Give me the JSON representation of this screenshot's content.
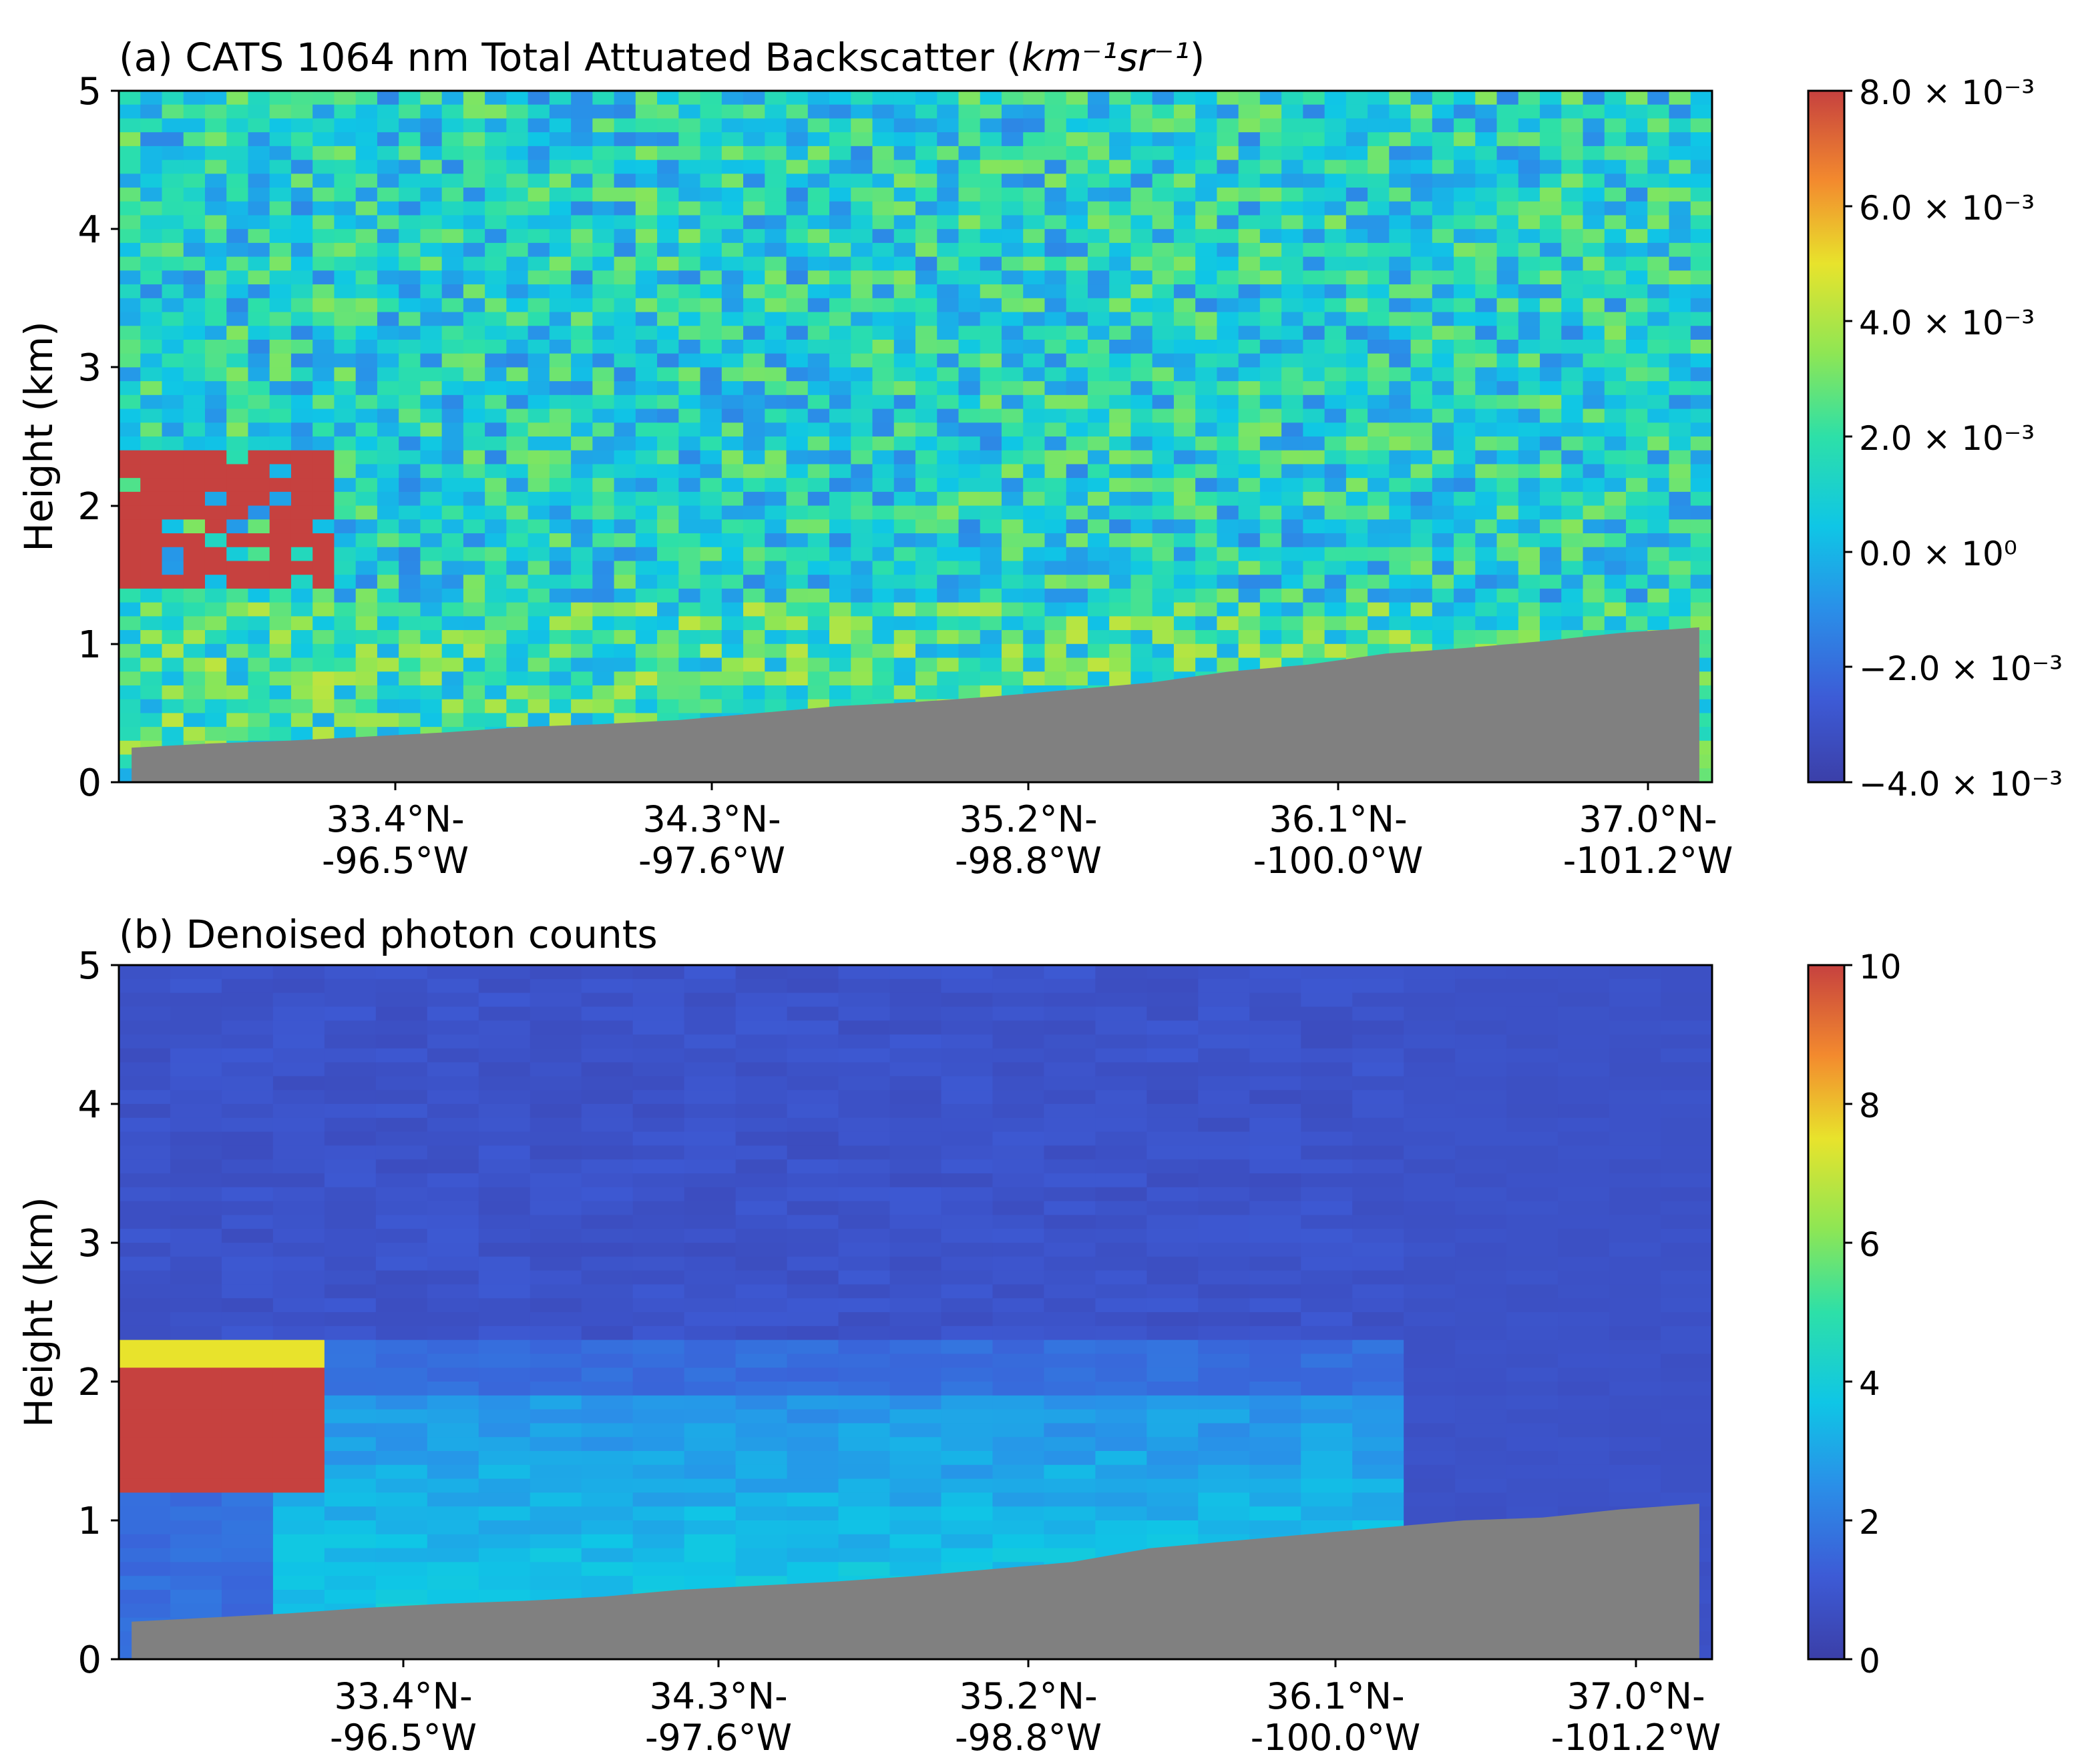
{
  "chart_data": [
    {
      "type": "heatmap",
      "title": "(a) CATS 1064 nm Total Attuated Backscatter (",
      "title_unit": "km⁻¹sr⁻¹",
      "title_close": ")",
      "xlabel": "",
      "ylabel": "Height (km)",
      "ylim": [
        0,
        5
      ],
      "yticks": [
        "0",
        "1",
        "2",
        "3",
        "4",
        "5"
      ],
      "xticks": [
        {
          "lat": "33.4°N-",
          "lon": "-96.5°W"
        },
        {
          "lat": "34.3°N-",
          "lon": "-97.6°W"
        },
        {
          "lat": "35.2°N-",
          "lon": "-98.8°W"
        },
        {
          "lat": "36.1°N-",
          "lon": "-100.0°W"
        },
        {
          "lat": "37.0°N-",
          "lon": "-101.2°W"
        }
      ],
      "colorbar": {
        "min": -0.004,
        "max": 0.008,
        "colormap": "jet",
        "ticks": [
          "8.0 × 10⁻³",
          "6.0 × 10⁻³",
          "4.0 × 10⁻³",
          "2.0 × 10⁻³",
          "0.0 × 10⁰",
          "−2.0 × 10⁻³",
          "−4.0 × 10⁻³"
        ]
      },
      "field": "noisy backscatter, typically -0.002 to 0.004; saturated cloud (>=0.008) at 1.4-2.4 km near left edge",
      "surface_height_km": [
        0.25,
        0.28,
        0.3,
        0.33,
        0.36,
        0.4,
        0.42,
        0.45,
        0.5,
        0.55,
        0.58,
        0.62,
        0.67,
        0.72,
        0.8,
        0.85,
        0.93,
        0.97,
        1.02,
        1.08,
        1.12
      ]
    },
    {
      "type": "heatmap",
      "title": "(b) Denoised photon counts",
      "xlabel": "",
      "ylabel": "Height (km)",
      "ylim": [
        0,
        5
      ],
      "yticks": [
        "0",
        "1",
        "2",
        "3",
        "4",
        "5"
      ],
      "xticks": [
        {
          "lat": "33.4°N-",
          "lon": "-96.5°W"
        },
        {
          "lat": "34.3°N-",
          "lon": "-97.6°W"
        },
        {
          "lat": "35.2°N-",
          "lon": "-98.8°W"
        },
        {
          "lat": "36.1°N-",
          "lon": "-100.0°W"
        },
        {
          "lat": "37.0°N-",
          "lon": "-101.2°W"
        }
      ],
      "colorbar": {
        "min": 0,
        "max": 10,
        "colormap": "jet",
        "ticks": [
          "10",
          "8",
          "6",
          "4",
          "2",
          "0"
        ]
      },
      "field": "smooth, ~0.5-1 above 2.5 km; aerosol layer 2-4 counts below ~2 km; saturated cloud 10 at 1.2-2.3 km near left edge",
      "surface_height_km": [
        0.27,
        0.3,
        0.33,
        0.37,
        0.4,
        0.42,
        0.45,
        0.5,
        0.53,
        0.56,
        0.6,
        0.65,
        0.7,
        0.8,
        0.85,
        0.9,
        0.95,
        1.0,
        1.02,
        1.08,
        1.12
      ]
    }
  ]
}
